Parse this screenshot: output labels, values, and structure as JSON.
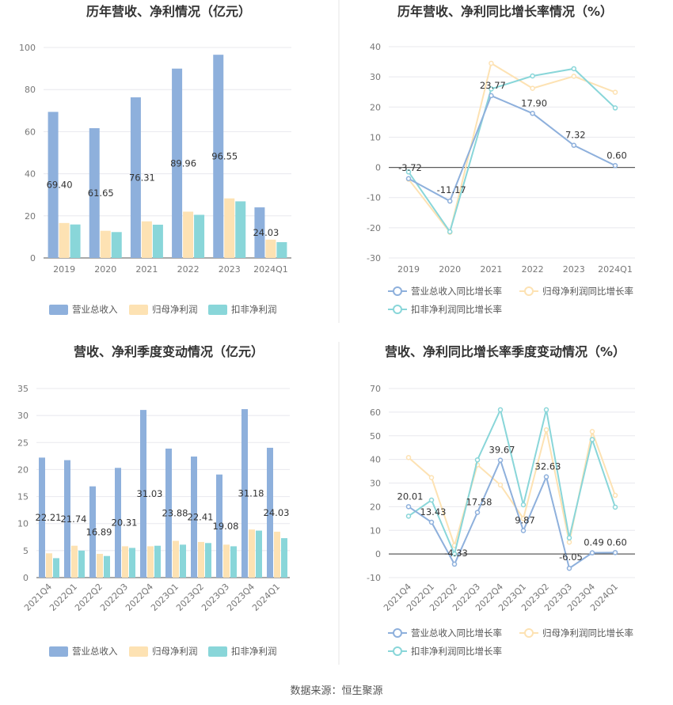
{
  "source_text": "数据来源：恒生聚源",
  "colors": {
    "revenue": "#8eb0dc",
    "net_profit": "#fde2b3",
    "deducted_profit": "#89d6d9",
    "line_revenue": "#8eb0dc",
    "line_net": "#fde2b3",
    "line_deducted": "#89d6d9"
  },
  "chart_data": [
    {
      "type": "bar",
      "title": "历年营收、净利情况（亿元）",
      "categories": [
        "2019",
        "2020",
        "2021",
        "2022",
        "2023",
        "2024Q1"
      ],
      "ylim": [
        0,
        100
      ],
      "yticks": [
        0,
        20,
        40,
        60,
        80,
        100
      ],
      "series": [
        {
          "name": "营业总收入",
          "values": [
            69.4,
            61.65,
            76.31,
            89.96,
            96.55,
            24.03
          ],
          "labels": [
            "69.40",
            "61.65",
            "76.31",
            "89.96",
            "96.55",
            "24.03"
          ]
        },
        {
          "name": "归母净利润",
          "values": [
            16.6,
            12.9,
            17.4,
            22.0,
            28.3,
            8.7
          ]
        },
        {
          "name": "扣非净利润",
          "values": [
            15.9,
            12.3,
            15.8,
            20.5,
            26.9,
            7.5
          ]
        }
      ],
      "legend": "bottom"
    },
    {
      "type": "line",
      "title": "历年营收、净利同比增长率情况（%）",
      "categories": [
        "2019",
        "2020",
        "2021",
        "2022",
        "2023",
        "2024Q1"
      ],
      "ylim": [
        -30,
        40
      ],
      "yticks": [
        -30,
        -20,
        -10,
        0,
        10,
        20,
        30,
        40
      ],
      "series": [
        {
          "name": "营业总收入同比增长率",
          "values": [
            -3.72,
            -11.17,
            23.77,
            17.9,
            7.32,
            0.6
          ],
          "labels": [
            "-3.72",
            "-11.17",
            "23.77",
            "17.90",
            "7.32",
            "0.60"
          ]
        },
        {
          "name": "归母净利润同比增长率",
          "values": [
            -3.9,
            -21.5,
            34.5,
            26.2,
            30.2,
            24.9
          ]
        },
        {
          "name": "扣非净利润同比增长率",
          "values": [
            -1.5,
            -21.3,
            26.0,
            30.3,
            32.7,
            19.7
          ]
        }
      ],
      "legend": "bottom"
    },
    {
      "type": "bar",
      "title": "营收、净利季度变动情况（亿元）",
      "categories": [
        "2021Q4",
        "2022Q1",
        "2022Q2",
        "2022Q3",
        "2022Q4",
        "2023Q1",
        "2023Q2",
        "2023Q3",
        "2023Q4",
        "2024Q1"
      ],
      "ylim": [
        0,
        35
      ],
      "yticks": [
        0,
        5,
        10,
        15,
        20,
        25,
        30,
        35
      ],
      "series": [
        {
          "name": "营业总收入",
          "values": [
            22.21,
            21.74,
            16.89,
            20.31,
            31.03,
            23.88,
            22.41,
            19.08,
            31.18,
            24.03
          ],
          "labels": [
            "22.21",
            "21.74",
            "16.89",
            "20.31",
            "31.03",
            "23.88",
            "22.41",
            "19.08",
            "31.18",
            "24.03"
          ]
        },
        {
          "name": "归母净利润",
          "values": [
            4.5,
            5.9,
            4.4,
            5.8,
            5.8,
            6.8,
            6.6,
            6.1,
            8.9,
            8.5
          ]
        },
        {
          "name": "扣非净利润",
          "values": [
            3.6,
            5.0,
            4.0,
            5.5,
            5.9,
            6.1,
            6.4,
            5.8,
            8.7,
            7.3
          ]
        }
      ],
      "legend": "bottom"
    },
    {
      "type": "line",
      "title": "营收、净利同比增长率季度变动情况（%）",
      "categories": [
        "2021Q4",
        "2022Q1",
        "2022Q2",
        "2022Q3",
        "2022Q4",
        "2023Q1",
        "2023Q2",
        "2023Q3",
        "2023Q4",
        "2024Q1"
      ],
      "ylim": [
        -10,
        70
      ],
      "yticks": [
        -10,
        0,
        10,
        20,
        30,
        40,
        50,
        60,
        70
      ],
      "series": [
        {
          "name": "营业总收入同比增长率",
          "values": [
            20.01,
            13.43,
            -4.33,
            17.58,
            39.67,
            9.87,
            32.63,
            -6.05,
            0.49,
            0.6
          ],
          "labels": [
            "20.01",
            "13.43",
            "-4.33",
            "17.58",
            "39.67",
            "9.87",
            "32.63",
            "-6.05",
            "0.49",
            "0.60"
          ]
        },
        {
          "name": "归母净利润同比增长率",
          "values": [
            40.8,
            32.3,
            3.6,
            37.7,
            29.2,
            15.0,
            52.5,
            5.0,
            51.8,
            24.8
          ]
        },
        {
          "name": "扣非净利润同比增长率",
          "values": [
            16.0,
            22.8,
            0.0,
            39.8,
            61.0,
            20.8,
            61.0,
            6.8,
            48.4,
            19.8
          ]
        }
      ],
      "legend": "bottom"
    }
  ]
}
